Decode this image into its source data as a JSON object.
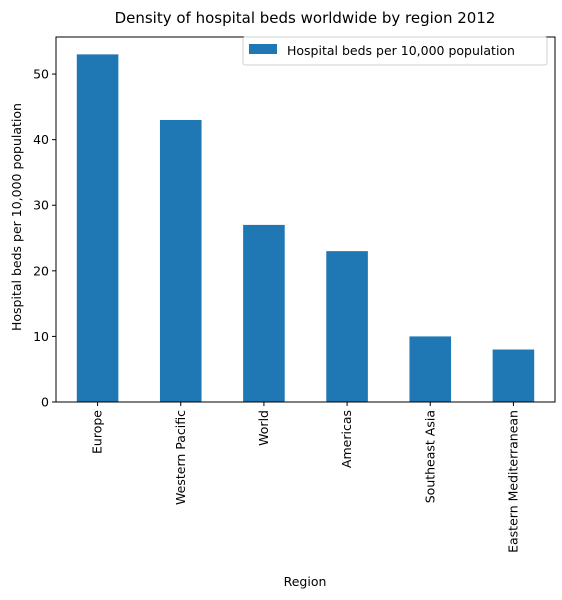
{
  "chart_data": {
    "type": "bar",
    "title": "Density of hospital beds worldwide by region 2012",
    "xlabel": "Region",
    "ylabel": "Hospital beds per 10,000 population",
    "categories": [
      "Europe",
      "Western Pacific",
      "World",
      "Americas",
      "Southeast Asia",
      "Eastern Mediterranean"
    ],
    "series": [
      {
        "name": "Hospital beds per 10,000 population",
        "values": [
          53,
          43,
          27,
          23,
          10,
          8
        ],
        "color": "#1f77b4"
      }
    ],
    "ylim": [
      0,
      55.65
    ],
    "yticks": [
      0,
      10,
      20,
      30,
      40,
      50
    ],
    "grid": false,
    "legend_position": "top-right"
  }
}
